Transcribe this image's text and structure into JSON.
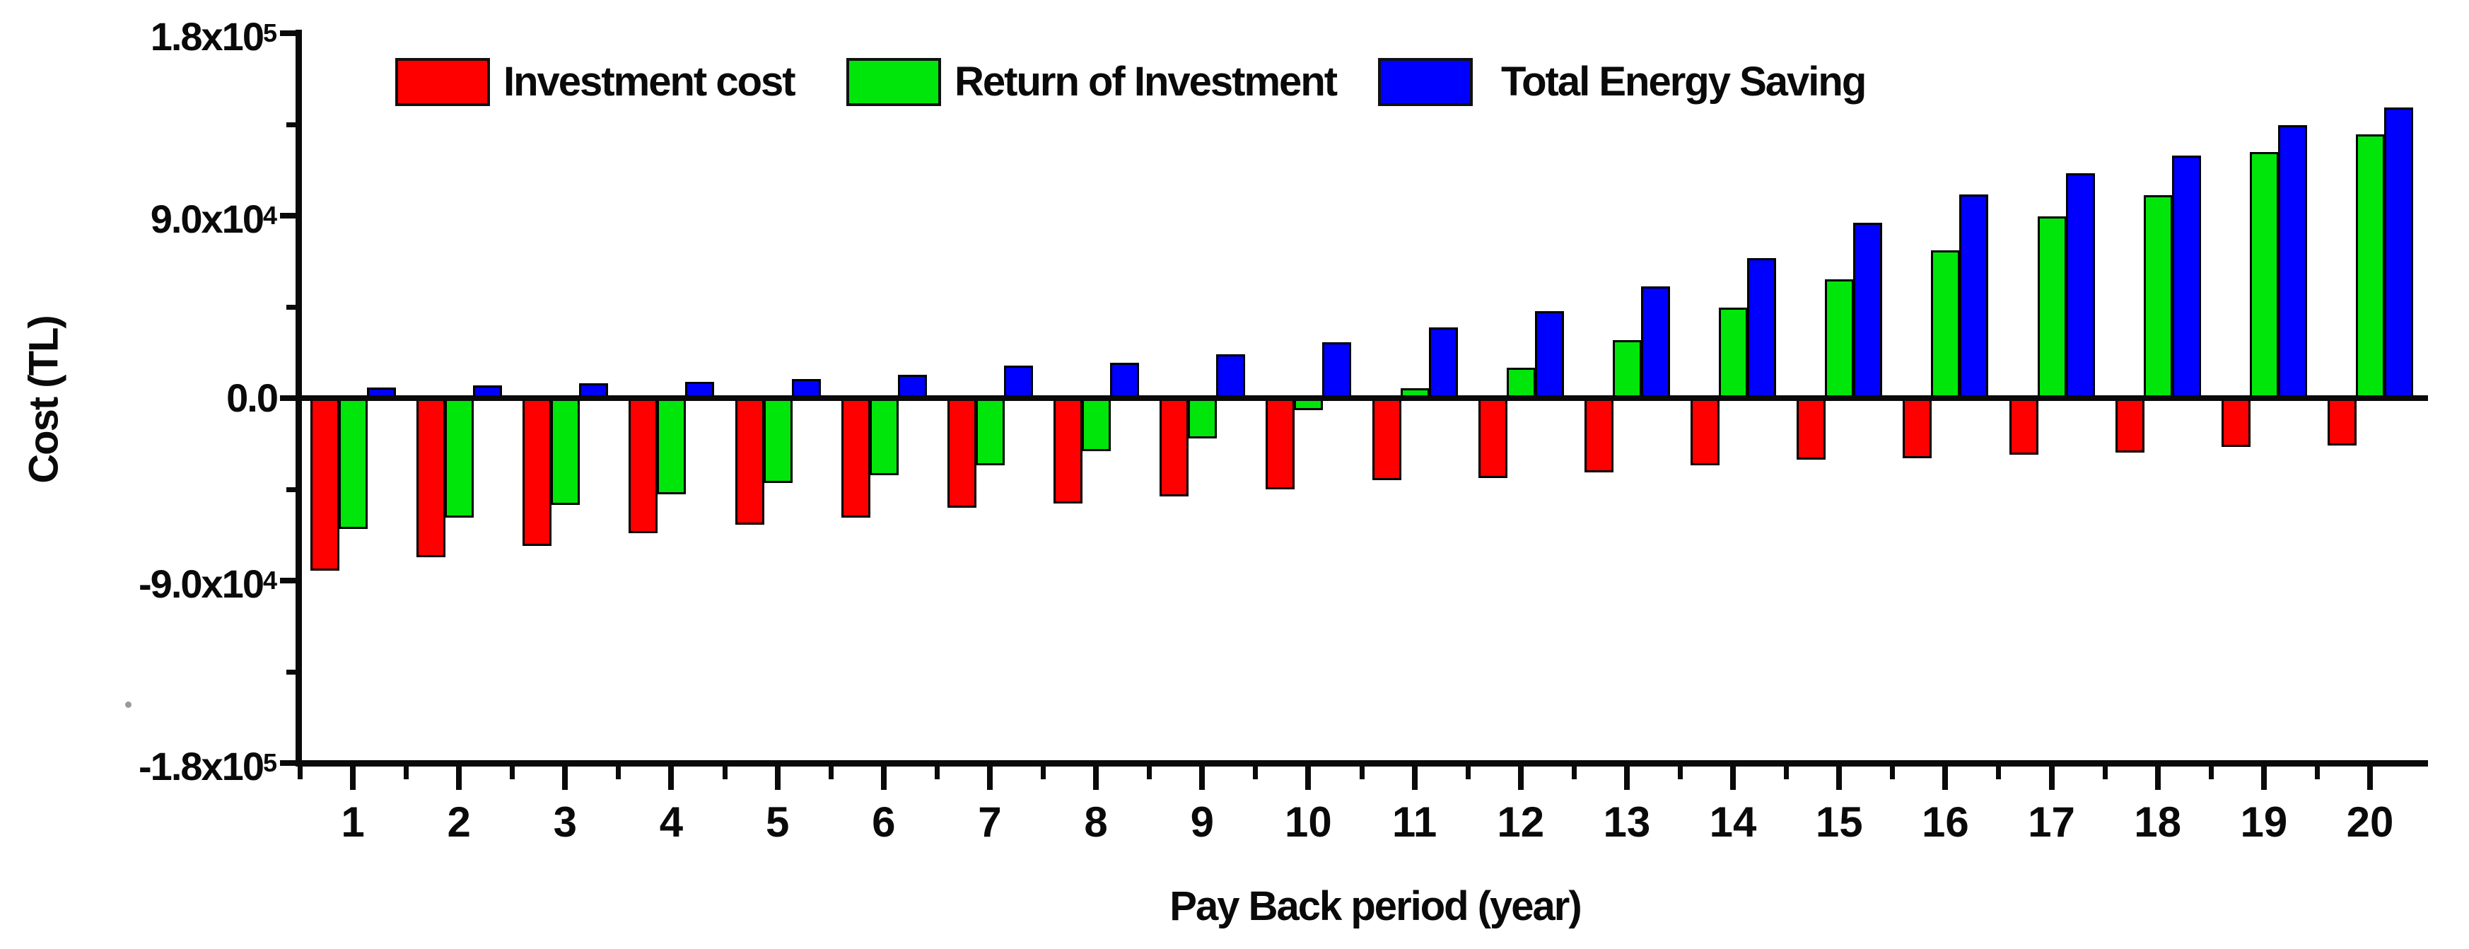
{
  "chart_data": {
    "type": "bar",
    "title": "",
    "xlabel": "Pay Back period (year)",
    "ylabel": "Cost (TL)",
    "categories": [
      "1",
      "2",
      "3",
      "4",
      "5",
      "6",
      "7",
      "8",
      "9",
      "10",
      "11",
      "12",
      "13",
      "14",
      "15",
      "16",
      "17",
      "18",
      "19",
      "20"
    ],
    "series": [
      {
        "name": "Investment cost",
        "color": "#fe0000",
        "values": [
          -85000,
          -78500,
          -73000,
          -66500,
          -62500,
          -59000,
          -54000,
          -52000,
          -48500,
          -45000,
          -40500,
          -39500,
          -36500,
          -33000,
          -30500,
          -29500,
          -28000,
          -27000,
          -24000,
          -23500
        ]
      },
      {
        "name": "Return of Investment",
        "color": "#00e60b",
        "values": [
          -64500,
          -59000,
          -52500,
          -47500,
          -42000,
          -38000,
          -33000,
          -26000,
          -20000,
          -6000,
          5000,
          15000,
          28500,
          44500,
          58500,
          73000,
          89500,
          100000,
          121500,
          130000
        ]
      },
      {
        "name": "Total Energy Saving",
        "color": "#0000fe",
        "values": [
          5200,
          6300,
          7400,
          8000,
          9400,
          11500,
          16000,
          17500,
          21500,
          27500,
          35000,
          43000,
          55000,
          69000,
          86500,
          100500,
          111000,
          119500,
          134500,
          143500
        ]
      }
    ],
    "ylim": [
      -180000,
      180000
    ],
    "yticks": [
      {
        "value": 180000,
        "label": "1.8x10",
        "sup": "5"
      },
      {
        "value": 90000,
        "label": "9.0x10",
        "sup": "4"
      },
      {
        "value": 0,
        "label": "0.0",
        "sup": ""
      },
      {
        "value": -90000,
        "label": "-9.0x10",
        "sup": "4"
      },
      {
        "value": -180000,
        "label": "-1.8x10",
        "sup": "5"
      }
    ],
    "y_minor_tick_step": 45000,
    "legend_position": "top",
    "grid": false,
    "axis_color": "#0a0a0a",
    "background_color": "#ffffff"
  }
}
